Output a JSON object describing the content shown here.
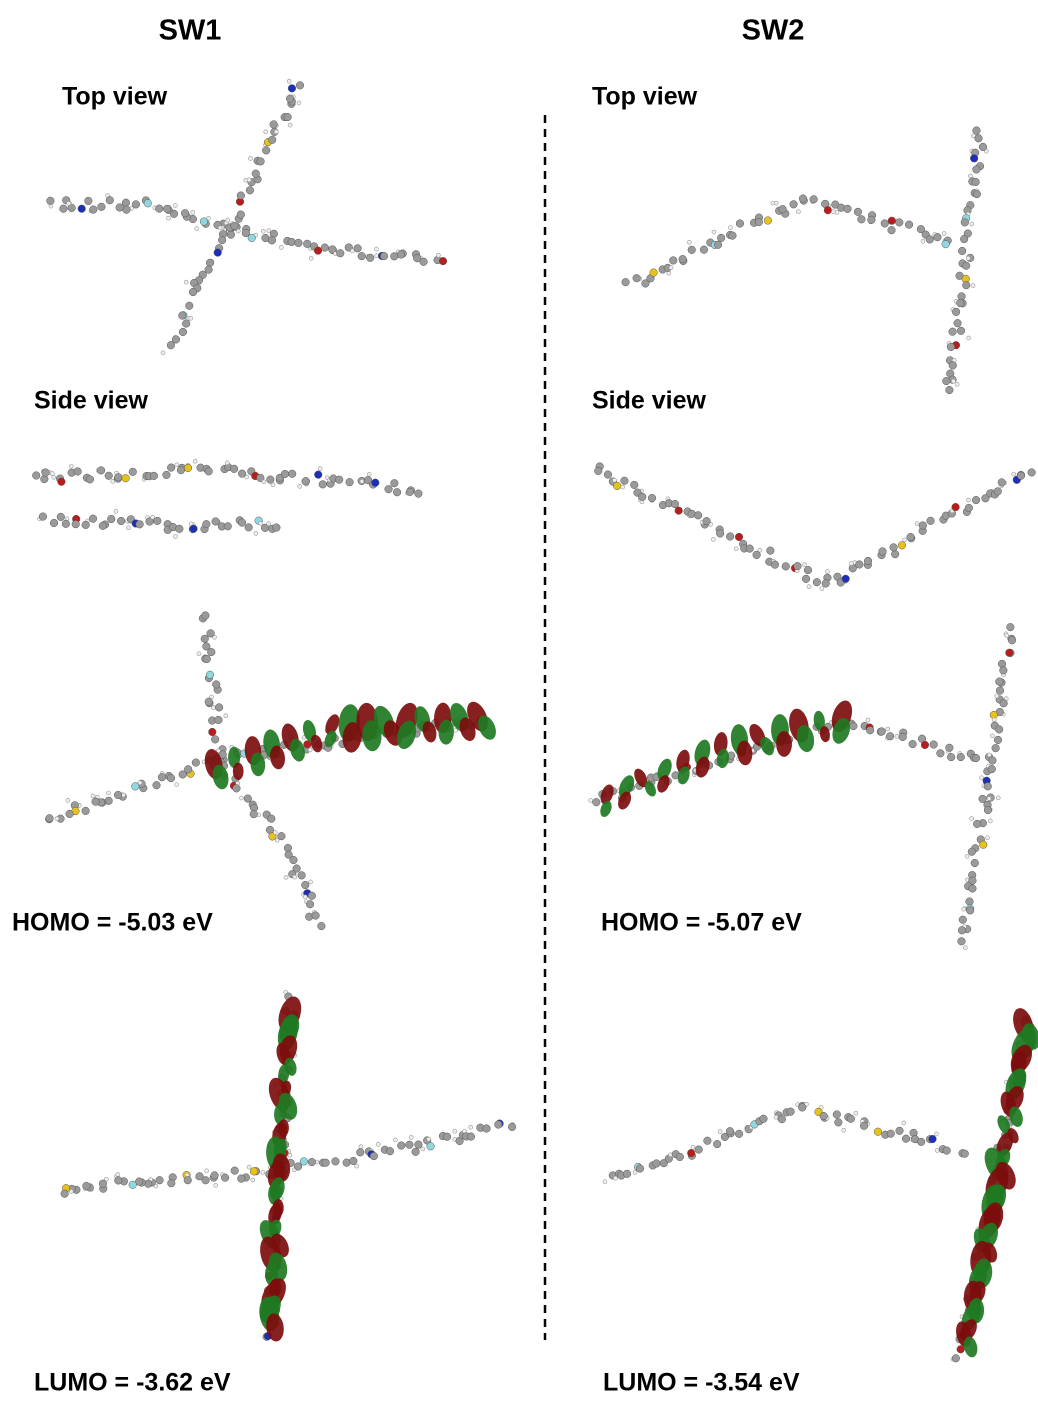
{
  "columns": [
    {
      "title": "SW1",
      "top_view_label": "Top view",
      "side_view_label": "Side view",
      "homo_label": "HOMO = -5.03 eV",
      "lumo_label": "LUMO = -3.62 eV"
    },
    {
      "title": "SW2",
      "top_view_label": "Top view",
      "side_view_label": "Side view",
      "homo_label": "HOMO = -5.07 eV",
      "lumo_label": "LUMO = -3.54 eV"
    }
  ]
}
